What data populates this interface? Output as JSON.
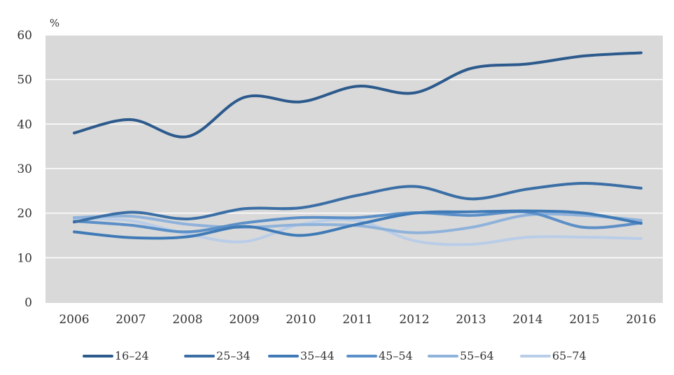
{
  "chart_data": {
    "type": "line",
    "title": "",
    "xlabel": "",
    "ylabel": "%",
    "ylim": [
      0,
      60
    ],
    "yticks": [
      0,
      10,
      20,
      30,
      40,
      50,
      60
    ],
    "categories": [
      "2006",
      "2007",
      "2008",
      "2009",
      "2010",
      "2011",
      "2012",
      "2013",
      "2014",
      "2015",
      "2016"
    ],
    "grid": true,
    "legend_position": "bottom",
    "series": [
      {
        "name": "16–24",
        "color": "#2c5a8c",
        "values": [
          38,
          41,
          37.2,
          46,
          45,
          48.5,
          47,
          52.5,
          53.5,
          55.3,
          56
        ]
      },
      {
        "name": "25–34",
        "color": "#3a6ea5",
        "values": [
          18,
          20.2,
          18.7,
          21,
          21.2,
          24,
          26,
          23.2,
          25.4,
          26.7,
          25.6
        ]
      },
      {
        "name": "35–44",
        "color": "#3f7ab6",
        "values": [
          15.8,
          14.5,
          14.7,
          17,
          15,
          17.5,
          20,
          20.3,
          20.5,
          20,
          17.7
        ]
      },
      {
        "name": "45–54",
        "color": "#5b8fc7",
        "values": [
          18.2,
          17.3,
          15.8,
          17.8,
          19,
          19,
          20.1,
          19.5,
          20.2,
          16.8,
          17.8
        ]
      },
      {
        "name": "55–64",
        "color": "#8fb2db",
        "values": [
          19,
          19.3,
          17.5,
          16.8,
          17.4,
          17.2,
          15.6,
          16.8,
          19.6,
          19.5,
          18.4
        ]
      },
      {
        "name": "65–74",
        "color": "#b9cde8",
        "values": [
          18.8,
          18.3,
          15.3,
          13.6,
          17.5,
          18.3,
          13.8,
          13,
          14.6,
          14.6,
          14.3
        ]
      }
    ]
  },
  "colors": {
    "plot_background": "#d9d9d9",
    "gridline": "#ffffff"
  }
}
